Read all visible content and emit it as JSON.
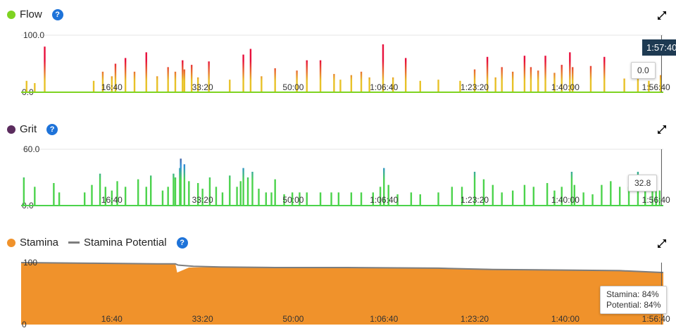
{
  "flow": {
    "legend": "Flow",
    "colors": {
      "dot": "#7ed321",
      "low": "#e8c228",
      "high": "#e8103c",
      "base": "#7ed321"
    },
    "tooltip": "0.0",
    "cursor_time": "1:57:40"
  },
  "grit": {
    "legend": "Grit",
    "colors": {
      "dot": "#5b2c5e",
      "low": "#4cd34c",
      "mid": "#2e8fd6",
      "high": "#5b2c6e",
      "base": "#4cd34c"
    },
    "tooltip": "32.8"
  },
  "stamina": {
    "legend": "Stamina",
    "legend2": "Stamina Potential",
    "colors": {
      "dot": "#f0922b",
      "fill": "#f0922b",
      "potential": "#7d7d7d"
    },
    "tooltip_line1": "Stamina: 84%",
    "tooltip_line2": "Potential: 84%"
  },
  "chart_data": [
    {
      "type": "area",
      "ylim": [
        0,
        100
      ],
      "y_ticks": [
        "0.0",
        "100.0"
      ],
      "x_ticks": [
        "16:40",
        "33:20",
        "50:00",
        "1:06:40",
        "1:23:20",
        "1:40:00",
        "1:56:40"
      ],
      "x_tick_seconds": [
        1000,
        2000,
        3000,
        4000,
        5000,
        6000,
        7000
      ],
      "x_range_seconds": [
        0,
        7080
      ],
      "spikes": [
        [
          60,
          20
        ],
        [
          150,
          16
        ],
        [
          260,
          80
        ],
        [
          800,
          20
        ],
        [
          900,
          36
        ],
        [
          1000,
          28
        ],
        [
          1040,
          50
        ],
        [
          1150,
          60
        ],
        [
          1250,
          36
        ],
        [
          1380,
          70
        ],
        [
          1500,
          28
        ],
        [
          1620,
          44
        ],
        [
          1700,
          36
        ],
        [
          1780,
          56
        ],
        [
          1800,
          40
        ],
        [
          1880,
          48
        ],
        [
          1950,
          26
        ],
        [
          2070,
          54
        ],
        [
          2300,
          22
        ],
        [
          2450,
          66
        ],
        [
          2530,
          76
        ],
        [
          2650,
          28
        ],
        [
          2800,
          42
        ],
        [
          3040,
          38
        ],
        [
          3150,
          56
        ],
        [
          3300,
          56
        ],
        [
          3450,
          32
        ],
        [
          3520,
          22
        ],
        [
          3640,
          30
        ],
        [
          3750,
          36
        ],
        [
          3840,
          26
        ],
        [
          3990,
          84
        ],
        [
          4100,
          26
        ],
        [
          4240,
          60
        ],
        [
          4400,
          20
        ],
        [
          4600,
          22
        ],
        [
          4840,
          20
        ],
        [
          5000,
          40
        ],
        [
          5140,
          62
        ],
        [
          5230,
          26
        ],
        [
          5300,
          44
        ],
        [
          5420,
          36
        ],
        [
          5550,
          64
        ],
        [
          5620,
          44
        ],
        [
          5700,
          38
        ],
        [
          5780,
          64
        ],
        [
          5880,
          34
        ],
        [
          5960,
          48
        ],
        [
          6050,
          70
        ],
        [
          6080,
          44
        ],
        [
          6280,
          46
        ],
        [
          6430,
          62
        ],
        [
          6650,
          24
        ],
        [
          6800,
          44
        ],
        [
          6920,
          20
        ],
        [
          7050,
          30
        ]
      ],
      "cursor_x_seconds": 7060,
      "cursor_value": 0.0
    },
    {
      "type": "area",
      "ylim": [
        0,
        60
      ],
      "y_ticks": [
        "0.0",
        "60.0"
      ],
      "x_ticks": [
        "16:40",
        "33:20",
        "50:00",
        "1:06:40",
        "1:23:20",
        "1:40:00",
        "1:56:40"
      ],
      "x_tick_seconds": [
        1000,
        2000,
        3000,
        4000,
        5000,
        6000,
        7000
      ],
      "x_range_seconds": [
        0,
        7080
      ],
      "spikes": [
        [
          30,
          30
        ],
        [
          150,
          20
        ],
        [
          360,
          24
        ],
        [
          420,
          14
        ],
        [
          700,
          14
        ],
        [
          780,
          22
        ],
        [
          870,
          34
        ],
        [
          930,
          20
        ],
        [
          1000,
          16
        ],
        [
          1060,
          26
        ],
        [
          1150,
          20
        ],
        [
          1290,
          28
        ],
        [
          1380,
          20
        ],
        [
          1430,
          32
        ],
        [
          1560,
          16
        ],
        [
          1620,
          20
        ],
        [
          1680,
          34
        ],
        [
          1700,
          30
        ],
        [
          1750,
          40
        ],
        [
          1760,
          50
        ],
        [
          1800,
          44
        ],
        [
          1850,
          26
        ],
        [
          1950,
          24
        ],
        [
          2000,
          18
        ],
        [
          2080,
          30
        ],
        [
          2150,
          20
        ],
        [
          2220,
          14
        ],
        [
          2300,
          32
        ],
        [
          2380,
          20
        ],
        [
          2420,
          26
        ],
        [
          2450,
          40
        ],
        [
          2500,
          30
        ],
        [
          2550,
          36
        ],
        [
          2620,
          18
        ],
        [
          2700,
          14
        ],
        [
          2760,
          14
        ],
        [
          2800,
          28
        ],
        [
          2900,
          12
        ],
        [
          2990,
          14
        ],
        [
          3070,
          14
        ],
        [
          3150,
          14
        ],
        [
          3300,
          14
        ],
        [
          3420,
          14
        ],
        [
          3500,
          14
        ],
        [
          3640,
          14
        ],
        [
          3750,
          14
        ],
        [
          3880,
          14
        ],
        [
          3960,
          20
        ],
        [
          4000,
          40
        ],
        [
          4050,
          22
        ],
        [
          4150,
          12
        ],
        [
          4300,
          14
        ],
        [
          4400,
          12
        ],
        [
          4600,
          14
        ],
        [
          4750,
          20
        ],
        [
          4860,
          20
        ],
        [
          5000,
          36
        ],
        [
          5100,
          28
        ],
        [
          5200,
          22
        ],
        [
          5300,
          14
        ],
        [
          5420,
          16
        ],
        [
          5550,
          22
        ],
        [
          5650,
          20
        ],
        [
          5800,
          24
        ],
        [
          5880,
          16
        ],
        [
          5960,
          20
        ],
        [
          6070,
          36
        ],
        [
          6100,
          22
        ],
        [
          6200,
          14
        ],
        [
          6300,
          12
        ],
        [
          6400,
          22
        ],
        [
          6500,
          26
        ],
        [
          6600,
          20
        ],
        [
          6700,
          20
        ],
        [
          6800,
          36
        ],
        [
          6880,
          22
        ],
        [
          6960,
          22
        ],
        [
          7000,
          20
        ],
        [
          7040,
          16
        ]
      ],
      "cursor_x_seconds": 7060,
      "cursor_value": 32.8
    },
    {
      "type": "area",
      "ylim": [
        0,
        100
      ],
      "y_ticks": [
        "0",
        "100"
      ],
      "x_ticks": [
        "16:40",
        "33:20",
        "50:00",
        "1:06:40",
        "1:23:20",
        "1:40:00",
        "1:56:40"
      ],
      "x_tick_seconds": [
        1000,
        2000,
        3000,
        4000,
        5000,
        6000,
        7000
      ],
      "x_range_seconds": [
        0,
        7080
      ],
      "stamina": [
        [
          0,
          100
        ],
        [
          800,
          99
        ],
        [
          1500,
          98
        ],
        [
          1700,
          98
        ],
        [
          1720,
          84
        ],
        [
          1850,
          92
        ],
        [
          2200,
          93
        ],
        [
          2800,
          92
        ],
        [
          3600,
          92
        ],
        [
          4600,
          91
        ],
        [
          5200,
          89
        ],
        [
          6000,
          88
        ],
        [
          6600,
          87
        ],
        [
          7080,
          84
        ]
      ],
      "potential": [
        [
          0,
          100
        ],
        [
          800,
          99
        ],
        [
          1500,
          98
        ],
        [
          1700,
          98
        ],
        [
          1730,
          96
        ],
        [
          1900,
          94
        ],
        [
          2200,
          93
        ],
        [
          2800,
          92
        ],
        [
          3600,
          92
        ],
        [
          4600,
          91
        ],
        [
          5200,
          89
        ],
        [
          6000,
          88
        ],
        [
          6600,
          87
        ],
        [
          7080,
          84
        ]
      ],
      "cursor_x_seconds": 7060,
      "cursor_value": 84
    }
  ]
}
